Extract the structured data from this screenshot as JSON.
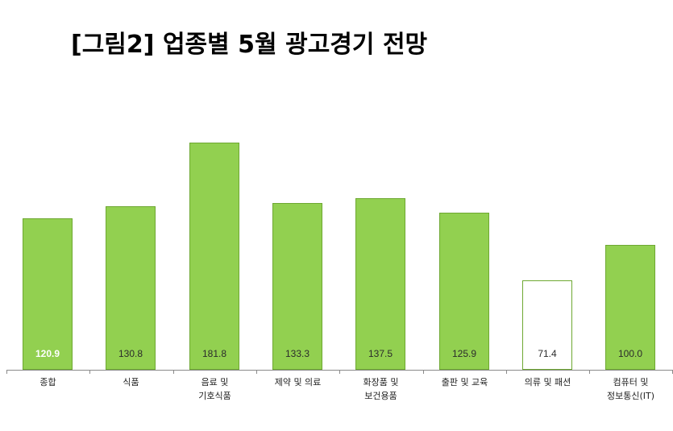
{
  "title": "[그림2] 업종별 5월 광고경기 전망",
  "colors": {
    "bar_fill": "#92d050",
    "bar_border": "#6ea832",
    "hollow_fill": "#ffffff",
    "axis": "#8a8a8a"
  },
  "chart_data": {
    "type": "bar",
    "title": "[그림2] 업종별 5월 광고경기 전망",
    "xlabel": "",
    "ylabel": "",
    "grid": false,
    "legend": null,
    "ylim": [
      0,
      190
    ],
    "categories": [
      "종합",
      "식품",
      "음료 및\n기호식품",
      "제약 및 의료",
      "화장품 및\n보건용품",
      "출판 및 교육",
      "의류 및 패션",
      "컴퓨터 및\n정보통신(IT)"
    ],
    "values": [
      120.9,
      130.8,
      181.8,
      133.3,
      137.5,
      125.9,
      71.4,
      100.0
    ],
    "value_labels": [
      "120.9",
      "130.8",
      "181.8",
      "133.3",
      "137.5",
      "125.9",
      "71.4",
      "100.0"
    ],
    "bar_styles": [
      "filled",
      "filled",
      "filled",
      "filled",
      "filled",
      "filled",
      "hollow",
      "filled"
    ]
  }
}
